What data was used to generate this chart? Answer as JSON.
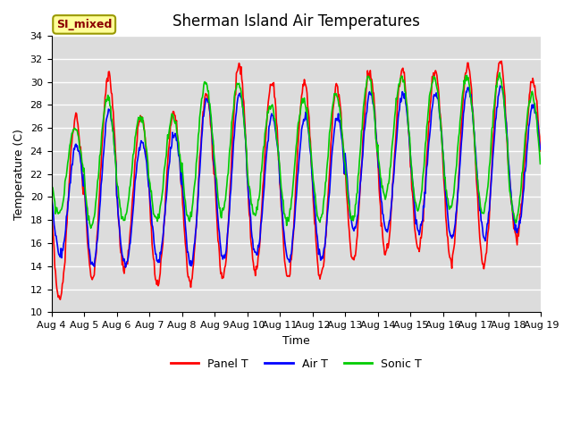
{
  "title": "Sherman Island Air Temperatures",
  "xlabel": "Time",
  "ylabel": "Temperature (C)",
  "ylim": [
    10,
    34
  ],
  "xlim_days": [
    0,
    15
  ],
  "bg_color": "#dcdcdc",
  "fig_bg_color": "#ffffff",
  "grid_color": "#ffffff",
  "annotation_text": "SI_mixed",
  "annotation_bg": "#ffff99",
  "annotation_border": "#999900",
  "annotation_text_color": "#8b0000",
  "x_tick_labels": [
    "Aug 4",
    "Aug 5",
    "Aug 6",
    "Aug 7",
    "Aug 8",
    "Aug 9",
    "Aug 10",
    "Aug 11",
    "Aug 12",
    "Aug 13",
    "Aug 14",
    "Aug 15",
    "Aug 16",
    "Aug 17",
    "Aug 18",
    "Aug 19"
  ],
  "legend_labels": [
    "Panel T",
    "Air T",
    "Sonic T"
  ],
  "legend_colors": [
    "#ff0000",
    "#0000ff",
    "#00cc00"
  ],
  "panel_t_color": "#ff0000",
  "air_t_color": "#0000ff",
  "sonic_t_color": "#00cc00",
  "line_lw": 1.2,
  "tick_fontsize": 8,
  "title_fontsize": 12,
  "label_fontsize": 9,
  "yticks": [
    10,
    12,
    14,
    16,
    18,
    20,
    22,
    24,
    26,
    28,
    30,
    32,
    34
  ]
}
